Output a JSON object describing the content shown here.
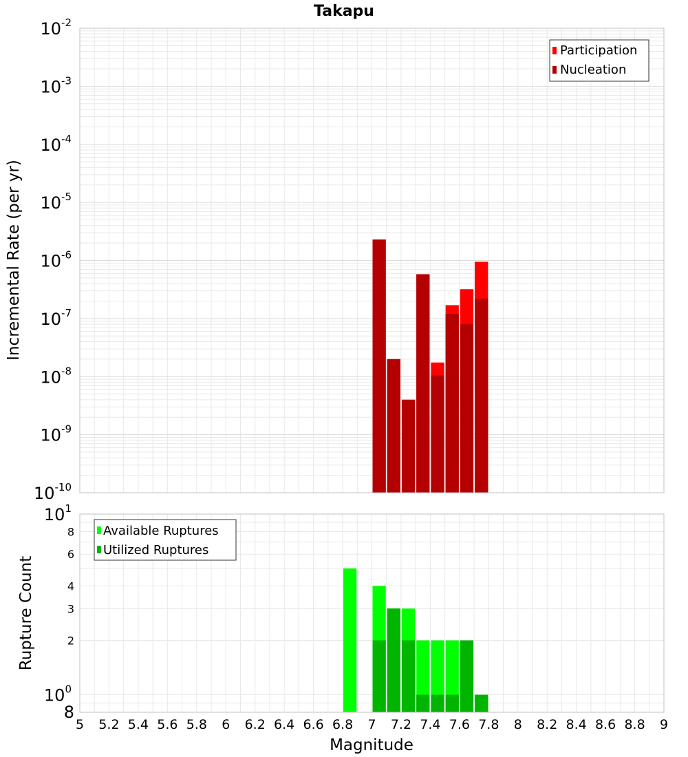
{
  "title": "Takapu",
  "xlabel": "Magnitude",
  "colors": {
    "participation": "#ff0000",
    "nucleation": "#b40000",
    "available": "#00ff00",
    "utilized": "#00b400",
    "grid": "#e8e8e8",
    "frame": "#c0c0c0"
  },
  "chart_data": [
    {
      "type": "bar",
      "title": "Takapu",
      "xlabel": "Magnitude",
      "ylabel": "Incremental Rate (per yr)",
      "yscale": "log",
      "xlim": [
        5,
        9
      ],
      "ylim": [
        1e-10,
        0.01
      ],
      "bin_width": 0.1,
      "legend": {
        "placement": "top-right",
        "entries": [
          "Participation",
          "Nucleation"
        ]
      },
      "series": [
        {
          "name": "Participation",
          "x": [
            7.05,
            7.15,
            7.25,
            7.35,
            7.45,
            7.55,
            7.65,
            7.75
          ],
          "values": [
            2.3e-06,
            2e-08,
            4e-09,
            5.8e-07,
            1.75e-08,
            1.7e-07,
            3.2e-07,
            9.5e-07
          ]
        },
        {
          "name": "Nucleation",
          "x": [
            7.05,
            7.15,
            7.25,
            7.35,
            7.45,
            7.55,
            7.65,
            7.75
          ],
          "values": [
            2.3e-06,
            2e-08,
            4e-09,
            5.8e-07,
            1.05e-08,
            1.2e-07,
            8e-08,
            2.2e-07
          ]
        }
      ]
    },
    {
      "type": "bar",
      "xlabel": "Magnitude",
      "ylabel": "Rupture Count",
      "yscale": "log",
      "xlim": [
        5,
        9
      ],
      "ylim": [
        0.8,
        10
      ],
      "bin_width": 0.1,
      "legend": {
        "placement": "top-left",
        "entries": [
          "Available Ruptures",
          "Utilized Ruptures"
        ]
      },
      "series": [
        {
          "name": "Available Ruptures",
          "x": [
            6.85,
            7.05,
            7.15,
            7.25,
            7.35,
            7.45,
            7.55,
            7.65,
            7.75
          ],
          "values": [
            5,
            4,
            3,
            3,
            2,
            2,
            2,
            2,
            1
          ]
        },
        {
          "name": "Utilized Ruptures",
          "x": [
            7.05,
            7.15,
            7.25,
            7.35,
            7.45,
            7.55,
            7.65,
            7.75
          ],
          "values": [
            2,
            3,
            2,
            1,
            1,
            1,
            2,
            1
          ]
        }
      ]
    }
  ],
  "x_ticks": [
    "5",
    "5.2",
    "5.4",
    "5.6",
    "5.8",
    "6",
    "6.2",
    "6.4",
    "6.6",
    "6.8",
    "7",
    "7.2",
    "7.4",
    "7.6",
    "7.8",
    "8",
    "8.2",
    "8.4",
    "8.6",
    "8.8",
    "9"
  ],
  "top_y_ticks": [
    {
      "exp": -2,
      "base": "10",
      "sup": "-2"
    },
    {
      "exp": -3,
      "base": "10",
      "sup": "-3"
    },
    {
      "exp": -4,
      "base": "10",
      "sup": "-4"
    },
    {
      "exp": -5,
      "base": "10",
      "sup": "-5"
    },
    {
      "exp": -6,
      "base": "10",
      "sup": "-6"
    },
    {
      "exp": -7,
      "base": "10",
      "sup": "-7"
    },
    {
      "exp": -8,
      "base": "10",
      "sup": "-8"
    },
    {
      "exp": -9,
      "base": "10",
      "sup": "-9"
    },
    {
      "exp": -10,
      "base": "10",
      "sup": "-10"
    }
  ],
  "bottom_y_ticks": [
    {
      "value": 10,
      "base": "10",
      "sup": "1"
    },
    {
      "value": 8,
      "label": "8"
    },
    {
      "value": 6,
      "label": "6"
    },
    {
      "value": 4,
      "label": "4"
    },
    {
      "value": 3,
      "label": "3"
    },
    {
      "value": 2,
      "label": "2"
    },
    {
      "value": 1,
      "base": "10",
      "sup": "0"
    },
    {
      "value": 0.8,
      "label": "8"
    }
  ]
}
